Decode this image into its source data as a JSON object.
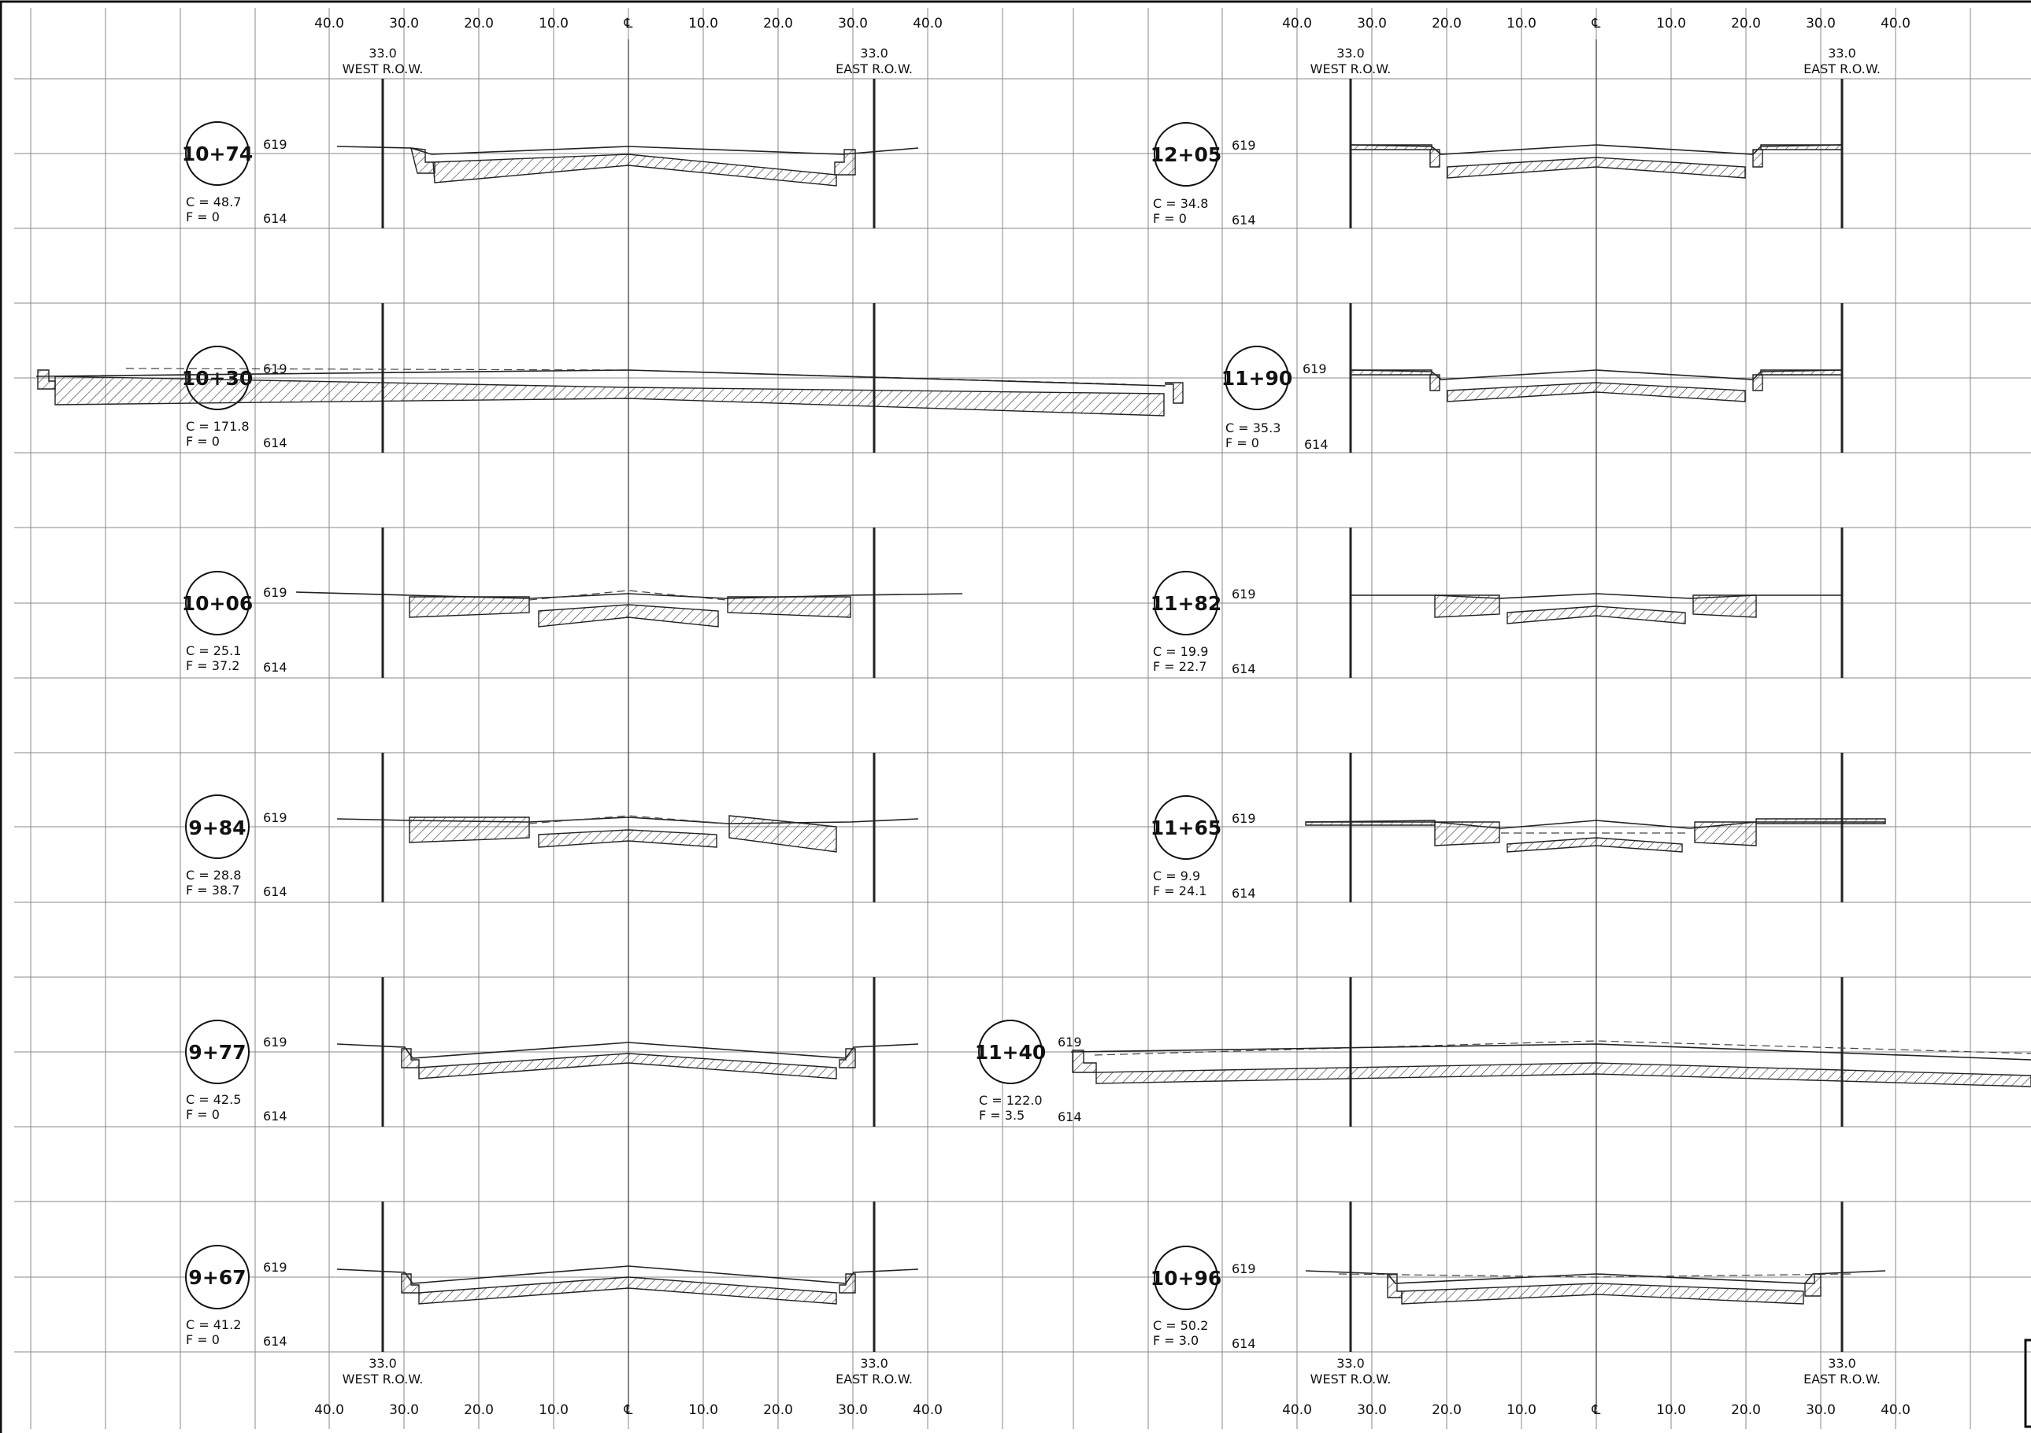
{
  "scale": {
    "ticks_left": [
      "40.0",
      "30.0",
      "20.0",
      "10.0",
      "℄",
      "10.0",
      "20.0",
      "30.0",
      "40.0"
    ],
    "ticks_right": [
      "40.0",
      "30.0",
      "20.0",
      "10.0",
      "℄",
      "10.0",
      "20.0",
      "30.0",
      "40.0"
    ],
    "row_offset": "33.0",
    "west_row": "WEST R.O.W.",
    "east_row": "EAST R.O.W."
  },
  "sections": [
    {
      "station": "10+74",
      "cut": "C = 48.7",
      "fill": "F = 0",
      "elev_top": "619",
      "elev_bottom": "614"
    },
    {
      "station": "10+30",
      "cut": "C = 171.8",
      "fill": "F = 0",
      "elev_top": "619",
      "elev_bottom": "614"
    },
    {
      "station": "10+06",
      "cut": "C = 25.1",
      "fill": "F = 37.2",
      "elev_top": "619",
      "elev_bottom": "614"
    },
    {
      "station": "9+84",
      "cut": "C = 28.8",
      "fill": "F = 38.7",
      "elev_top": "619",
      "elev_bottom": "614"
    },
    {
      "station": "9+77",
      "cut": "C = 42.5",
      "fill": "F = 0",
      "elev_top": "619",
      "elev_bottom": "614"
    },
    {
      "station": "9+67",
      "cut": "C = 41.2",
      "fill": "F = 0",
      "elev_top": "619",
      "elev_bottom": "614"
    },
    {
      "station": "12+05",
      "cut": "C = 34.8",
      "fill": "F = 0",
      "elev_top": "619",
      "elev_bottom": "614"
    },
    {
      "station": "11+90",
      "cut": "C = 35.3",
      "fill": "F = 0",
      "elev_top": "619",
      "elev_bottom": "614"
    },
    {
      "station": "11+82",
      "cut": "C = 19.9",
      "fill": "F = 22.7",
      "elev_top": "619",
      "elev_bottom": "614"
    },
    {
      "station": "11+65",
      "cut": "C = 9.9",
      "fill": "F = 24.1",
      "elev_top": "619",
      "elev_bottom": "614"
    },
    {
      "station": "11+40",
      "cut": "C = 122.0",
      "fill": "F = 3.5",
      "elev_top": "619",
      "elev_bottom": "614"
    },
    {
      "station": "10+96",
      "cut": "C = 50.2",
      "fill": "F = 3.0",
      "elev_top": "619",
      "elev_bottom": "614"
    }
  ]
}
